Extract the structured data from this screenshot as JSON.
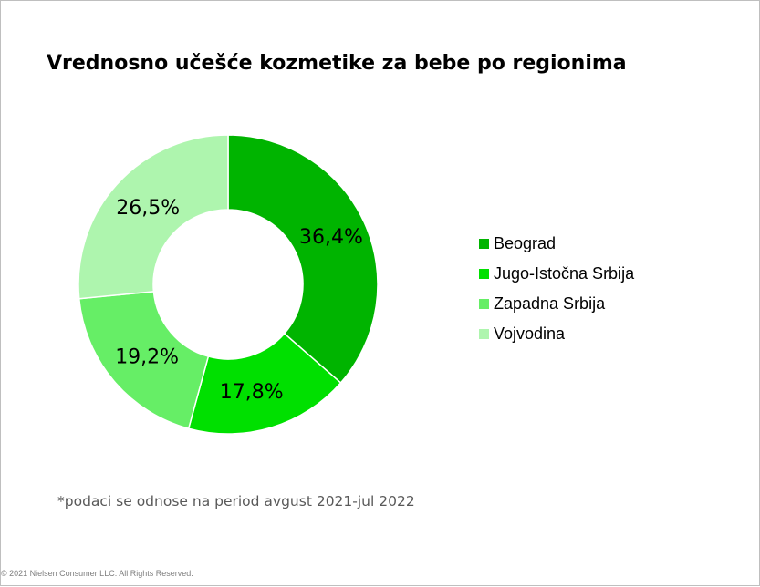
{
  "title": "Vrednosno učešće kozmetike za bebe po regionima",
  "note": "*podaci se odnose na period avgust 2021-jul 2022",
  "copyright": "© 2021 Nielsen Consumer LLC. All Rights Reserved.",
  "chart_data": {
    "type": "pie",
    "title": "Vrednosno učešće kozmetike za bebe po regionima",
    "donut": true,
    "legend_position": "right",
    "categories": [
      "Beograd",
      "Jugo-Istočna Srbija",
      "Zapadna Srbija",
      "Vojvodina"
    ],
    "values": [
      36.4,
      17.8,
      19.2,
      26.5
    ],
    "data_labels": [
      "36,4%",
      "17,8%",
      "19,2%",
      "26,5%"
    ],
    "colors": [
      "#00b400",
      "#00e000",
      "#66ee66",
      "#aef5ae"
    ]
  }
}
